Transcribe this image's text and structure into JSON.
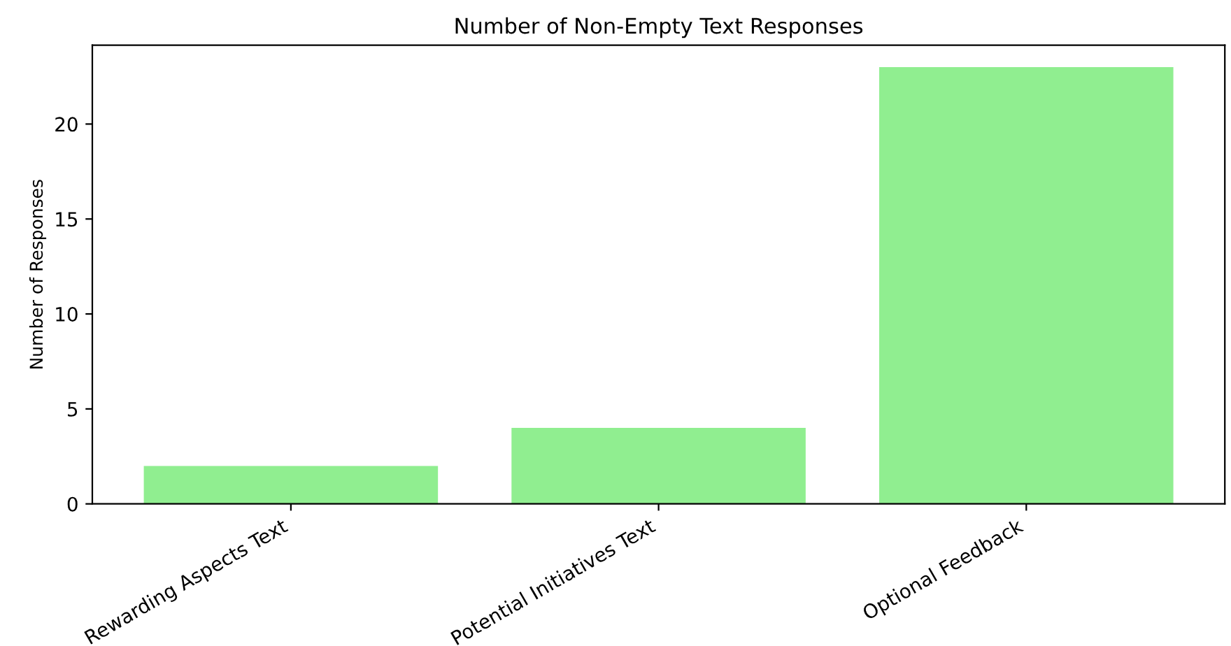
{
  "chart_data": {
    "type": "bar",
    "title": "Number of Non-Empty Text Responses",
    "ylabel": "Number of Responses",
    "categories": [
      "Rewarding Aspects Text",
      "Potential Initiatives Text",
      "Optional Feedback"
    ],
    "values": [
      2,
      4,
      23
    ],
    "color": "#90ee90",
    "ylim": [
      0,
      24.15
    ],
    "yticks": [
      0,
      5,
      10,
      15,
      20
    ],
    "grid": false,
    "legend": false
  }
}
